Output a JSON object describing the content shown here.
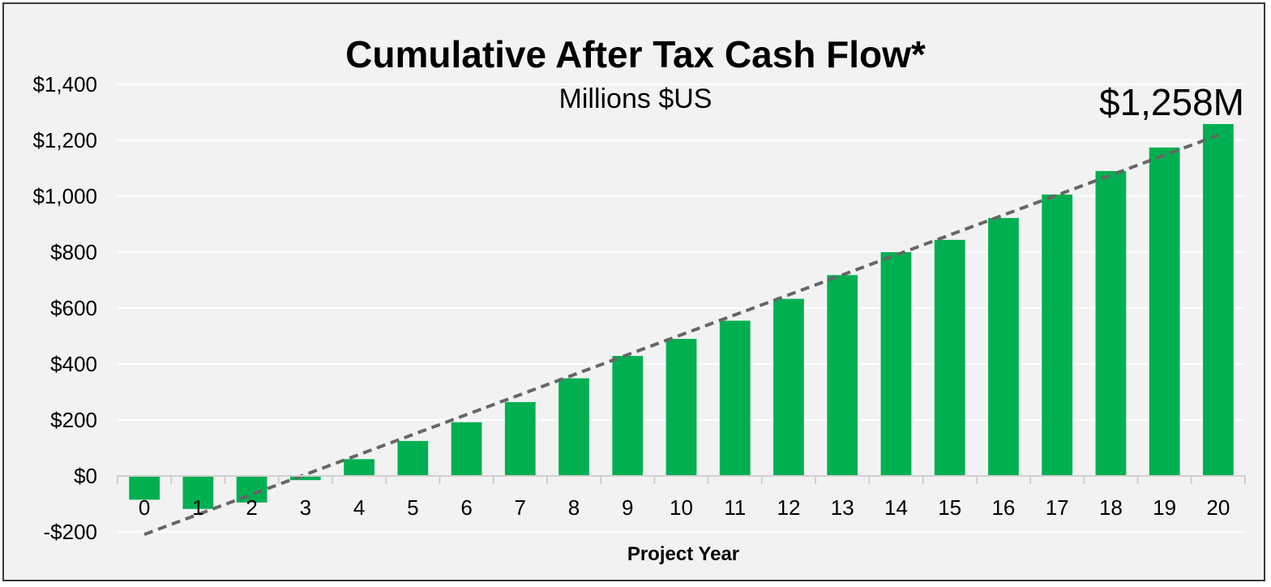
{
  "chart_data": {
    "type": "bar",
    "title": "Cumulative After Tax Cash Flow*",
    "subtitle": "Millions $US",
    "xlabel": "Project Year",
    "ylabel": "",
    "categories": [
      "0",
      "1",
      "2",
      "3",
      "4",
      "5",
      "6",
      "7",
      "8",
      "9",
      "10",
      "11",
      "12",
      "13",
      "14",
      "15",
      "16",
      "17",
      "18",
      "19",
      "20"
    ],
    "values": [
      -85,
      -118,
      -95,
      -15,
      60,
      125,
      192,
      264,
      349,
      429,
      490,
      555,
      633,
      718,
      800,
      844,
      922,
      1006,
      1090,
      1174,
      1258
    ],
    "ylim": [
      -200,
      1400
    ],
    "yticks": [
      -200,
      0,
      200,
      400,
      600,
      800,
      1000,
      1200,
      1400
    ],
    "ytick_labels": [
      "-$200",
      "$0",
      "$200",
      "$400",
      "$600",
      "$800",
      "$1,000",
      "$1,200",
      "$1,400"
    ],
    "trendline": {
      "type": "linear",
      "style": "dashed",
      "color": "#666666"
    },
    "annotation": "$1,258M",
    "bar_color": "#00b050",
    "grid": true,
    "legend": "none"
  }
}
